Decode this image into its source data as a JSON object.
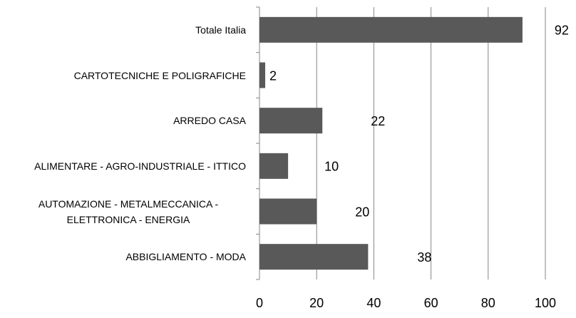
{
  "chart_data": {
    "type": "hbar",
    "categories": [
      "Totale Italia",
      "CARTOTECNICHE E POLIGRAFICHE",
      "ARREDO CASA",
      "ALIMENTARE - AGRO-INDUSTRIALE - ITTICO",
      "AUTOMAZIONE - METALMECCANICA - ELETTRONICA - ENERGIA",
      "ABBIGLIAMENTO - MODA"
    ],
    "values": [
      92,
      2,
      22,
      10,
      20,
      38
    ],
    "color": "#595959",
    "xlim": [
      0,
      100
    ],
    "xticks": [
      0,
      20,
      40,
      60,
      80,
      100
    ],
    "grid": true
  }
}
